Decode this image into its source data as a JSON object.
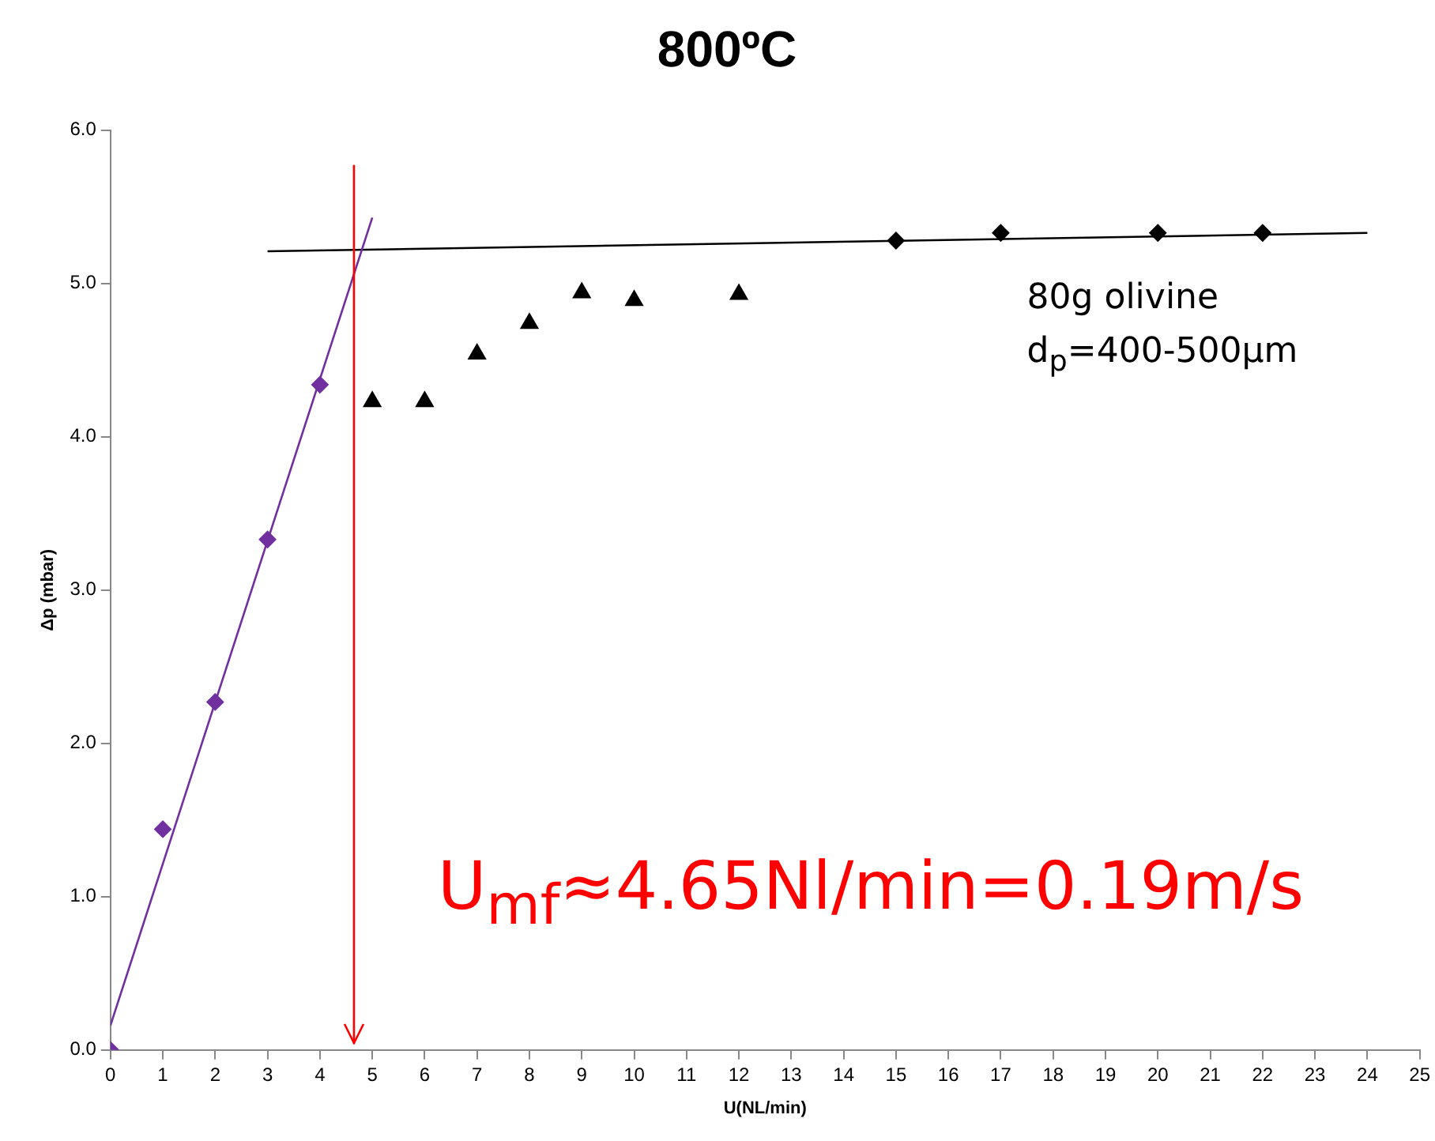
{
  "chart_data": {
    "type": "scatter",
    "title": "800ºC",
    "xlabel": "U(NL/min)",
    "ylabel": "Δp (mbar)",
    "xlim": [
      0,
      25
    ],
    "xticks": [
      0,
      1,
      2,
      3,
      4,
      5,
      6,
      7,
      8,
      9,
      10,
      11,
      12,
      13,
      14,
      15,
      16,
      17,
      18,
      19,
      20,
      21,
      22,
      23,
      24,
      25
    ],
    "ylim": [
      0,
      6
    ],
    "yticks": [
      {
        "value": 0,
        "label": "0.0"
      },
      {
        "value": 1,
        "label": "1.0"
      },
      {
        "value": 2,
        "label": "2.0"
      },
      {
        "value": 3,
        "label": "3.0"
      },
      {
        "value": 4,
        "label": "4.0"
      },
      {
        "value": 5,
        "label": "5.0"
      },
      {
        "value": 6,
        "label": "6.0"
      }
    ],
    "grid": false,
    "legend": false,
    "series": [
      {
        "type": "scatter",
        "marker": "diamond",
        "color": "#7030a0",
        "x": [
          0,
          1,
          2,
          3,
          4
        ],
        "values": [
          0,
          1.44,
          2.27,
          3.33,
          4.34
        ]
      },
      {
        "type": "scatter",
        "marker": "triangle",
        "color": "#000000",
        "x": [
          5,
          6,
          7,
          8,
          9,
          10,
          12
        ],
        "values": [
          4.23,
          4.23,
          4.54,
          4.74,
          4.94,
          4.89,
          4.93
        ]
      },
      {
        "type": "scatter",
        "marker": "diamond",
        "color": "#000000",
        "x": [
          15,
          17,
          20,
          22
        ],
        "values": [
          5.28,
          5.33,
          5.33,
          5.33
        ]
      },
      {
        "type": "line",
        "marker": "none",
        "color": "#7030a0",
        "x": [
          0,
          5
        ],
        "values": [
          0.16,
          5.43
        ]
      },
      {
        "type": "line",
        "marker": "none",
        "color": "#000000",
        "x": [
          3,
          24
        ],
        "values": [
          5.21,
          5.33
        ]
      }
    ],
    "ref_lines": [
      {
        "axis": "x",
        "value": 4.65,
        "color": "#ff0000"
      }
    ],
    "annotations": [
      "80g olivine",
      "d$_{p}$=400-500µm",
      "U$_{mf}$≈4.65Nl/min=0.19m/s"
    ]
  }
}
